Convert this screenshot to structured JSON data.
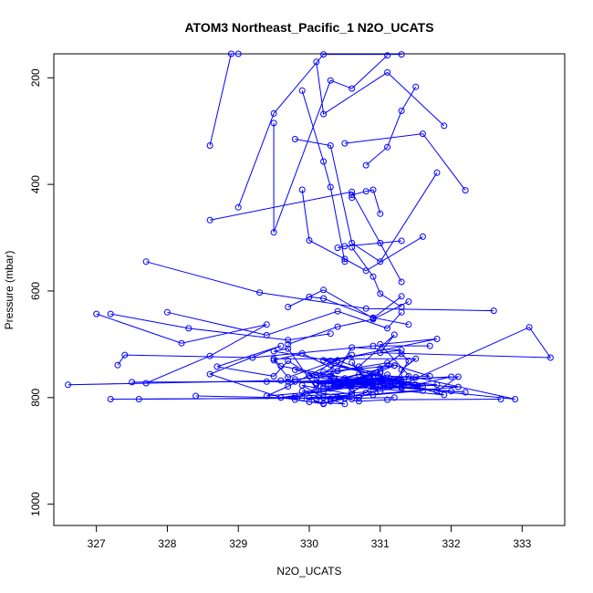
{
  "chart_data": {
    "type": "line",
    "title": "ATOM3 Northeast_Pacific_1 N2O_UCATS",
    "xlabel": "N2O_UCATS",
    "ylabel": "Pressure (mbar)",
    "xlim": [
      326.4,
      333.6
    ],
    "ylim": [
      1040,
      155
    ],
    "y_reversed": true,
    "grid": false,
    "x_ticks": [
      327,
      328,
      329,
      330,
      331,
      332,
      333
    ],
    "y_ticks": [
      200,
      400,
      600,
      800,
      1000
    ],
    "series_color": "#0000ff",
    "marker": "open-circle",
    "series": [
      {
        "x": [
          327.0,
          328.2,
          329.4,
          328.6,
          327.7,
          326.6,
          329.6,
          330.2,
          332.0,
          331.5,
          331.2,
          330.7,
          329.9,
          331.1,
          331.6,
          330.3,
          331.0,
          330.4,
          330.8,
          331.3,
          331.3,
          331.5,
          329.5,
          329.6,
          330.8,
          331.1,
          332.0,
          330.9,
          329.8,
          330.9,
          330.6,
          330.9,
          331.8,
          331.1,
          331.1,
          330.5,
          331.3,
          332.2,
          330.9,
          330.6,
          330.9,
          330.2,
          331.0,
          330.9,
          330.4,
          330.3,
          331.0,
          331.3,
          330.3,
          329.8,
          329.7,
          330.8,
          331.3,
          331.4,
          333.1,
          333.4,
          331.0,
          331.2,
          330.7,
          330.1,
          330.6,
          329.7,
          329.5,
          329.9,
          330.4,
          330.6,
          331.3,
          330.2,
          331.9,
          330.2,
          329.7,
          329.5,
          328.7,
          329.6,
          328.6,
          329.6,
          330.2,
          330.0,
          330.9,
          331.6,
          331.0,
          331.8,
          330.3,
          329.5,
          329.7,
          330.1,
          329.8,
          330.0,
          330.5,
          330.2,
          329.9,
          330.6,
          330.1,
          332.1,
          331.3,
          330.4,
          329.7,
          329.4,
          330.2,
          330.9,
          330.6,
          330.5,
          331.0,
          331.2,
          330.2,
          330.0,
          330.8,
          331.2,
          331.4,
          331.3,
          331.0,
          330.6,
          330.8,
          330.1,
          330.9,
          330.5,
          330.2,
          330.3,
          330.8,
          330.9,
          329.6,
          329.8,
          331.0,
          331.4,
          331.1,
          330.6,
          330.3,
          331.1,
          331.7,
          329.8,
          330.9,
          331.3,
          330.2,
          330.7,
          330.9,
          331.4,
          330.8,
          330.3,
          331.1,
          330.6,
          330.8,
          330.1,
          332.1,
          331.8,
          332.9,
          331.5,
          330.7,
          330.1,
          331.2,
          331.0,
          330.3,
          331.2
        ],
        "y": [
          643,
          698,
          663,
          722,
          773,
          776,
          768,
          773,
          761,
          776,
          773,
          800,
          788,
          773,
          779,
          738,
          754,
          773,
          764,
          780,
          748,
          727,
          727,
          741,
          770,
          780,
          788,
          779,
          748,
          780,
          734,
          785,
          776,
          768,
          773,
          764,
          782,
          790,
          775,
          773,
          769,
          780,
          768,
          773,
          770,
          778,
          762,
          768,
          760,
          766,
          770,
          774,
          772,
          770,
          668,
          725,
          716,
          682,
          742,
          763,
          720,
          762,
          730,
          717,
          750,
          706,
          711,
          730,
          795,
          773,
          731,
          760,
          742,
          703,
          756,
          800,
          812,
          800,
          795,
          787,
          700,
          690,
          731,
          713,
          708,
          784,
          804,
          808,
          812,
          800,
          777,
          794,
          803,
          780,
          774,
          730,
          779,
          797,
          788,
          763,
          776,
          770,
          751,
          740,
          752,
          760,
          775,
          773,
          731,
          718,
          745,
          772,
          764,
          775,
          760,
          802,
          811,
          807,
          791,
          775,
          800,
          798,
          788,
          776,
          757,
          789,
          752,
          735,
          760,
          770,
          768,
          780,
          784,
          770,
          772,
          760,
          768,
          783,
          768,
          770,
          763,
          773,
          761,
          788,
          803,
          762,
          757,
          774,
          770,
          780,
          769,
          740
        ]
      },
      {
        "x": [
          327.2,
          330.5,
          330.7,
          331.1,
          332.7
        ],
        "y": [
          803,
          801,
          807,
          804,
          803
        ]
      },
      {
        "x": [
          327.6,
          329.9,
          330.4,
          330.6
        ],
        "y": [
          803,
          801,
          799,
          803
        ]
      },
      {
        "x": [
          328.4,
          330.3,
          331.2
        ],
        "y": [
          797,
          802,
          800
        ]
      },
      {
        "x": [
          327.3,
          327.4,
          329.2,
          330.9,
          331.7
        ],
        "y": [
          739,
          720,
          725,
          703,
          703
        ]
      },
      {
        "x": [
          327.5,
          329.4,
          331.0
        ],
        "y": [
          771,
          770,
          775
        ]
      },
      {
        "x": [
          327.2,
          328.3,
          329.7,
          330.3
        ],
        "y": [
          643,
          670,
          692,
          680
        ]
      },
      {
        "x": [
          328.0,
          329.4,
          330.4,
          331.1,
          331.3
        ],
        "y": [
          640,
          683,
          638,
          670,
          640
        ]
      },
      {
        "x": [
          327.7,
          329.3,
          330.8,
          332.6
        ],
        "y": [
          545,
          603,
          633,
          637
        ]
      },
      {
        "x": [
          328.6,
          330.6,
          331.3
        ],
        "y": [
          467,
          414,
          583
        ]
      },
      {
        "x": [
          328.6,
          328.9,
          329.0
        ],
        "y": [
          327,
          155,
          155
        ]
      },
      {
        "x": [
          329.0,
          329.5,
          330.2,
          331.3
        ],
        "y": [
          443,
          267,
          156,
          156
        ]
      },
      {
        "x": [
          329.5,
          329.5,
          330.3,
          330.6,
          331.1
        ],
        "y": [
          285,
          490,
          205,
          220,
          158
        ]
      },
      {
        "x": [
          329.8,
          330.3,
          330.6,
          331.0,
          331.8
        ],
        "y": [
          315,
          327,
          510,
          545,
          378
        ]
      },
      {
        "x": [
          329.9,
          330.0,
          330.5,
          330.8,
          331.6
        ],
        "y": [
          410,
          505,
          540,
          562,
          498
        ]
      },
      {
        "x": [
          330.1,
          330.2,
          331.1,
          331.9
        ],
        "y": [
          170,
          268,
          190,
          290
        ]
      },
      {
        "x": [
          330.5,
          331.6,
          332.2
        ],
        "y": [
          323,
          305,
          411
        ]
      },
      {
        "x": [
          330.8,
          331.1,
          331.3,
          331.5
        ],
        "y": [
          364,
          330,
          262,
          217
        ]
      },
      {
        "x": [
          330.6,
          330.6,
          330.8,
          330.9,
          331.0
        ],
        "y": [
          425,
          420,
          413,
          410,
          455
        ]
      },
      {
        "x": [
          330.4,
          330.5,
          331.0,
          331.3
        ],
        "y": [
          519,
          516,
          510,
          506
        ]
      },
      {
        "x": [
          329.7,
          330.2,
          330.9,
          331.3
        ],
        "y": [
          630,
          598,
          651,
          610
        ]
      },
      {
        "x": [
          329.7,
          330.4,
          330.9,
          331.4
        ],
        "y": [
          700,
          667,
          653,
          620
        ]
      },
      {
        "x": [
          329.9,
          330.2,
          330.3,
          330.5
        ],
        "y": [
          224,
          357,
          405,
          545
        ]
      },
      {
        "x": [
          330.6,
          330.9,
          331.0,
          331.3
        ],
        "y": [
          518,
          573,
          605,
          630
        ]
      },
      {
        "x": [
          330.0,
          330.2,
          330.9,
          331.4
        ],
        "y": [
          611,
          614,
          650,
          663
        ]
      }
    ]
  }
}
